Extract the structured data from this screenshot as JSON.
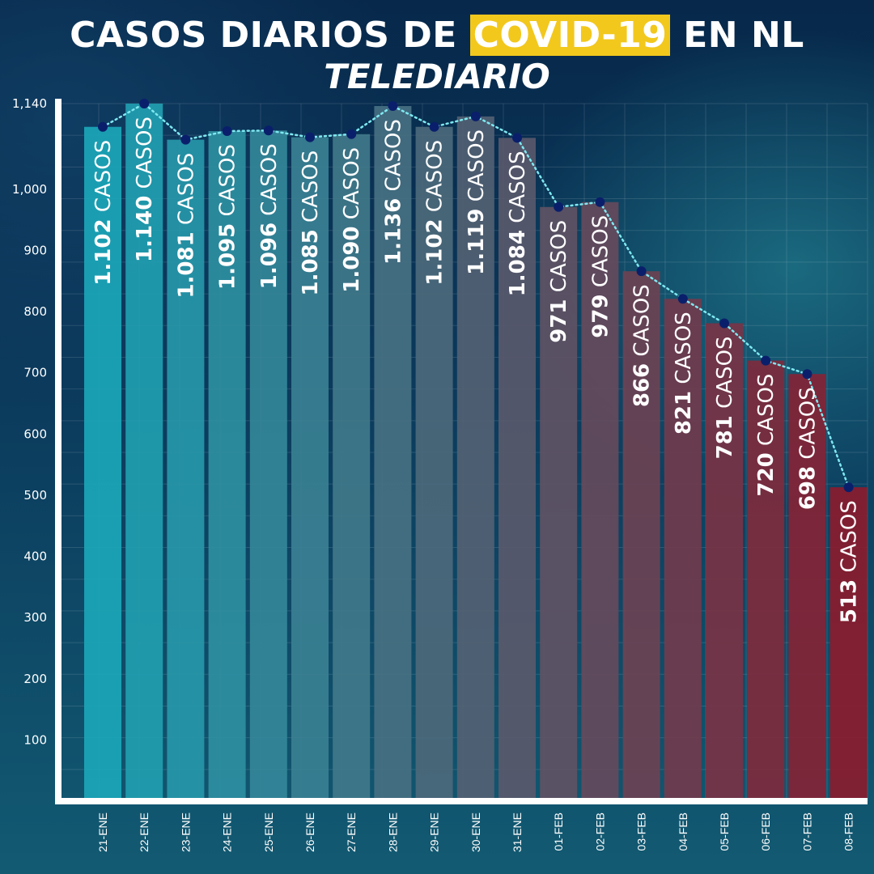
{
  "header": {
    "title_pre": "CASOS DIARIOS DE ",
    "title_highlight": "COVID-19",
    "title_post": " EN NL",
    "brand": "TELEDIARIO"
  },
  "colors": {
    "highlight": "#f2c81d",
    "bar_start": "#1ba6b8",
    "bar_end": "#8a1c2e",
    "line": "#7ee8f0",
    "marker": "#0a1f6b",
    "axis": "#ffffff"
  },
  "chart_data": {
    "type": "bar",
    "title": "CASOS DIARIOS DE COVID-19 EN NL",
    "xlabel": "",
    "ylabel": "",
    "ylim": [
      0,
      1140
    ],
    "y_ticks": [
      100,
      200,
      300,
      400,
      500,
      600,
      700,
      800,
      900,
      1000,
      1140
    ],
    "y_tick_labels": [
      "100",
      "200",
      "300",
      "400",
      "500",
      "600",
      "700",
      "800",
      "900",
      "1,000",
      "1,140"
    ],
    "grid": true,
    "overlay": "dotted line with markers connecting bar tops",
    "categories": [
      "21-ENE",
      "22-ENE",
      "23-ENE",
      "24-ENE",
      "25-ENE",
      "26-ENE",
      "27-ENE",
      "28-ENE",
      "29-ENE",
      "30-ENE",
      "31-ENE",
      "01-FEB",
      "02-FEB",
      "03-FEB",
      "04-FEB",
      "05-FEB",
      "06-FEB",
      "07-FEB",
      "08-FEB"
    ],
    "values": [
      1102,
      1140,
      1081,
      1095,
      1096,
      1085,
      1090,
      1136,
      1102,
      1119,
      1084,
      971,
      979,
      866,
      821,
      781,
      720,
      698,
      513
    ],
    "data_labels": [
      "1.102",
      "1.140",
      "1.081",
      "1.095",
      "1.096",
      "1.085",
      "1.090",
      "1.136",
      "1.102",
      "1.119",
      "1.084",
      "971",
      "979",
      "866",
      "821",
      "781",
      "720",
      "698",
      "513"
    ],
    "data_label_unit": " CASOS"
  }
}
